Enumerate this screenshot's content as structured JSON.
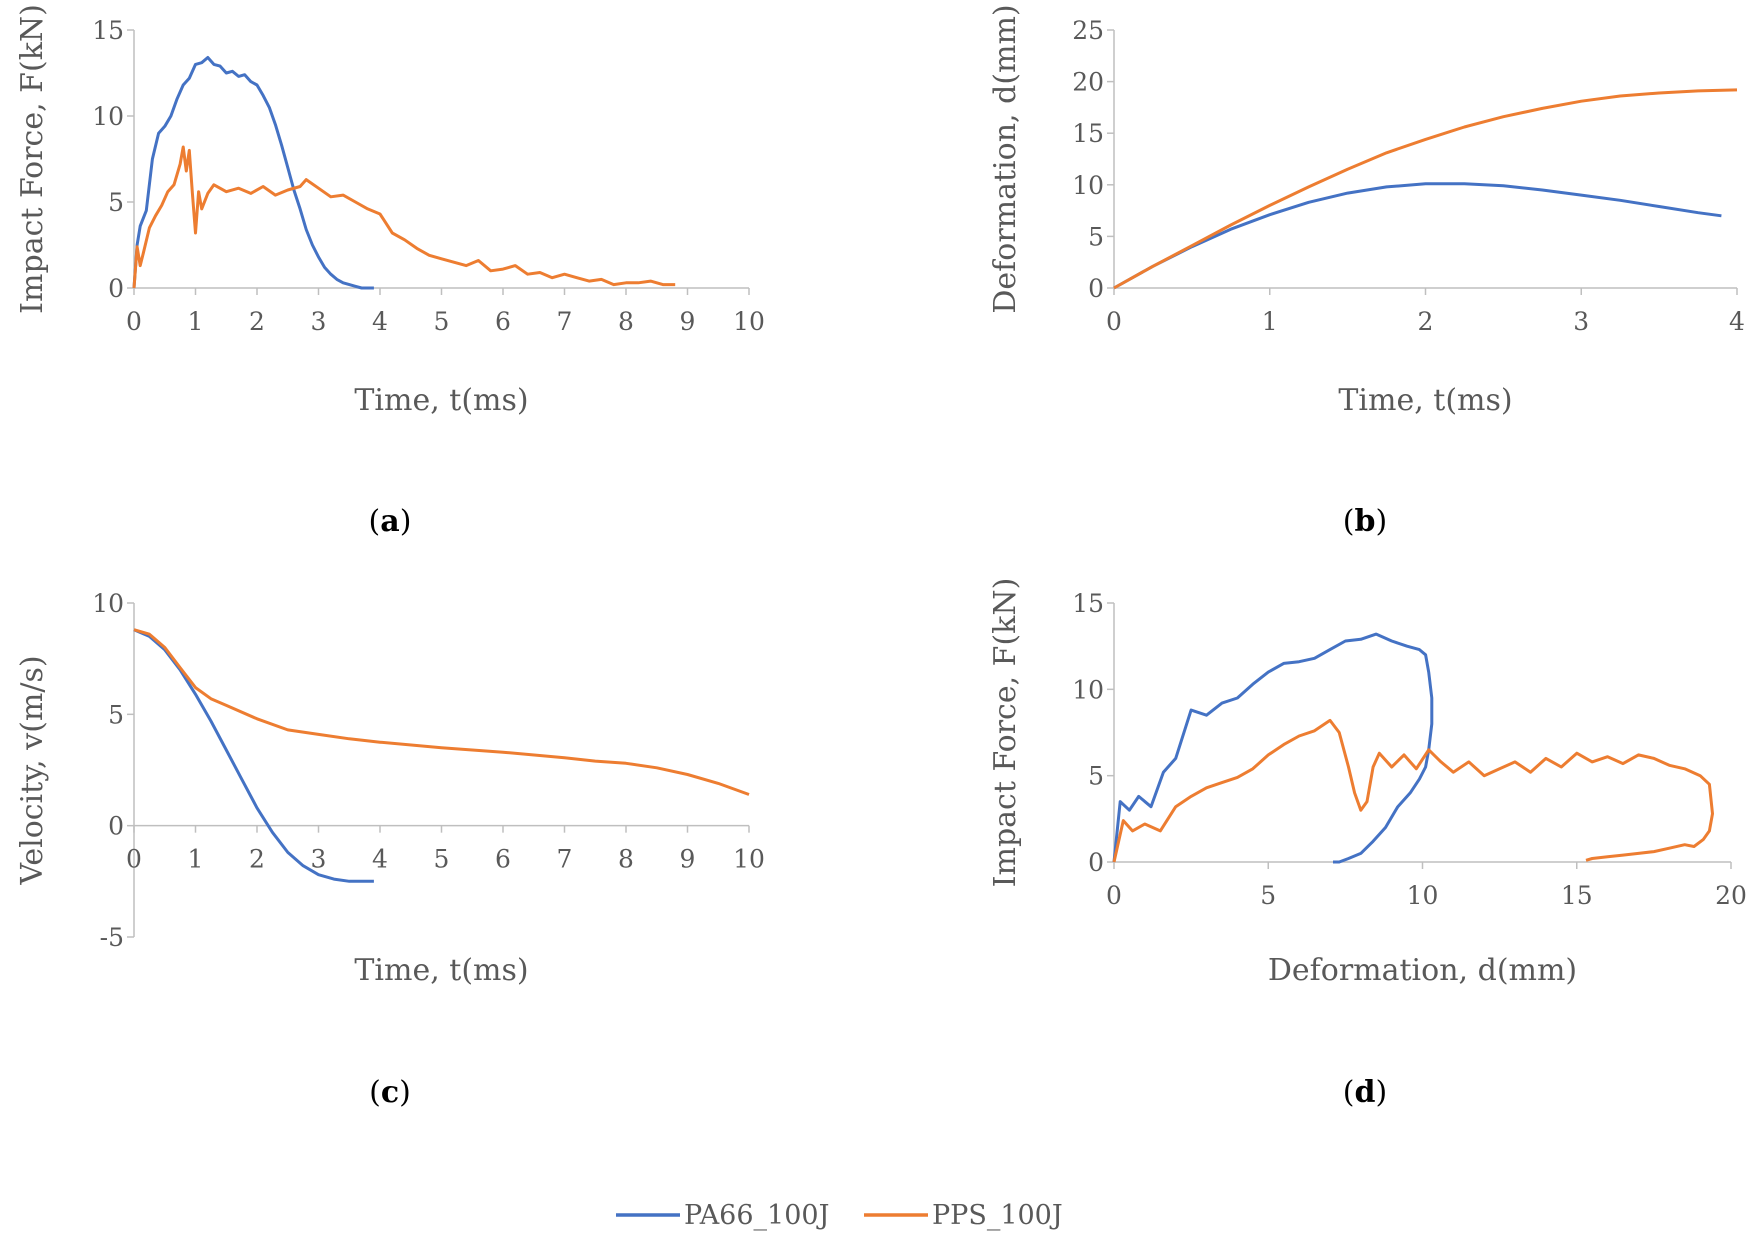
{
  "colors": {
    "PA66_100J": "#4472C4",
    "PPS_100J": "#ED7D31",
    "axis": "#BFBFBF",
    "text": "#595959"
  },
  "legend": {
    "series": [
      "PA66_100J",
      "PPS_100J"
    ]
  },
  "chart_data": [
    {
      "panel": "a",
      "type": "line",
      "xlabel": "Time, t(ms)",
      "ylabel": "Impact Force, F(kN)",
      "xlim": [
        0,
        10
      ],
      "ylim": [
        0,
        15
      ],
      "xticks": [
        0,
        1,
        2,
        3,
        4,
        5,
        6,
        7,
        8,
        9,
        10
      ],
      "yticks": [
        0,
        5,
        10,
        15
      ],
      "series": [
        {
          "name": "PA66_100J",
          "x": [
            0,
            0.05,
            0.1,
            0.2,
            0.3,
            0.4,
            0.5,
            0.6,
            0.7,
            0.8,
            0.9,
            1.0,
            1.1,
            1.2,
            1.3,
            1.4,
            1.5,
            1.6,
            1.7,
            1.8,
            1.9,
            2.0,
            2.1,
            2.2,
            2.3,
            2.4,
            2.5,
            2.6,
            2.7,
            2.8,
            2.9,
            3.0,
            3.1,
            3.2,
            3.3,
            3.4,
            3.5,
            3.6,
            3.7,
            3.8,
            3.9
          ],
          "y": [
            0,
            2.5,
            3.6,
            4.5,
            7.5,
            9.0,
            9.4,
            10.0,
            11.0,
            11.8,
            12.2,
            13.0,
            13.1,
            13.4,
            13.0,
            12.9,
            12.5,
            12.6,
            12.3,
            12.4,
            12.0,
            11.8,
            11.2,
            10.5,
            9.5,
            8.3,
            7.0,
            5.7,
            4.6,
            3.4,
            2.5,
            1.8,
            1.2,
            0.8,
            0.5,
            0.3,
            0.2,
            0.1,
            0.0,
            0.0,
            0.0
          ]
        },
        {
          "name": "PPS_100J",
          "x": [
            0,
            0.05,
            0.1,
            0.15,
            0.25,
            0.35,
            0.45,
            0.55,
            0.65,
            0.75,
            0.8,
            0.85,
            0.9,
            0.95,
            1.0,
            1.05,
            1.1,
            1.2,
            1.3,
            1.5,
            1.7,
            1.9,
            2.1,
            2.3,
            2.5,
            2.7,
            2.8,
            3.0,
            3.2,
            3.4,
            3.6,
            3.8,
            4.0,
            4.2,
            4.4,
            4.6,
            4.8,
            5.0,
            5.2,
            5.4,
            5.6,
            5.8,
            6.0,
            6.2,
            6.4,
            6.6,
            6.8,
            7.0,
            7.2,
            7.4,
            7.6,
            7.8,
            8.0,
            8.2,
            8.4,
            8.6,
            8.8
          ],
          "y": [
            0,
            2.4,
            1.3,
            2.0,
            3.5,
            4.2,
            4.8,
            5.6,
            6.0,
            7.2,
            8.2,
            6.8,
            8.0,
            5.5,
            3.2,
            5.6,
            4.6,
            5.5,
            6.0,
            5.6,
            5.8,
            5.5,
            5.9,
            5.4,
            5.7,
            5.9,
            6.3,
            5.8,
            5.3,
            5.4,
            5.0,
            4.6,
            4.3,
            3.2,
            2.8,
            2.3,
            1.9,
            1.7,
            1.5,
            1.3,
            1.6,
            1.0,
            1.1,
            1.3,
            0.8,
            0.9,
            0.6,
            0.8,
            0.6,
            0.4,
            0.5,
            0.2,
            0.3,
            0.3,
            0.4,
            0.2,
            0.2
          ]
        }
      ]
    },
    {
      "panel": "b",
      "type": "line",
      "xlabel": "Time, t(ms)",
      "ylabel": "Deformation, d(mm)",
      "xlim": [
        0,
        4
      ],
      "ylim": [
        0,
        25
      ],
      "xticks": [
        0,
        1,
        2,
        3,
        4
      ],
      "yticks": [
        0,
        5,
        10,
        15,
        20,
        25
      ],
      "series": [
        {
          "name": "PA66_100J",
          "x": [
            0,
            0.25,
            0.5,
            0.75,
            1.0,
            1.25,
            1.5,
            1.75,
            2.0,
            2.25,
            2.5,
            2.75,
            3.0,
            3.25,
            3.5,
            3.75,
            3.9
          ],
          "y": [
            0,
            2.1,
            4.0,
            5.7,
            7.1,
            8.3,
            9.2,
            9.8,
            10.1,
            10.1,
            9.9,
            9.5,
            9.0,
            8.5,
            7.9,
            7.3,
            7.0
          ]
        },
        {
          "name": "PPS_100J",
          "x": [
            0,
            0.25,
            0.5,
            0.75,
            1.0,
            1.25,
            1.5,
            1.75,
            2.0,
            2.25,
            2.5,
            2.75,
            3.0,
            3.25,
            3.5,
            3.75,
            4.0
          ],
          "y": [
            0,
            2.1,
            4.1,
            6.1,
            8.0,
            9.8,
            11.5,
            13.1,
            14.4,
            15.6,
            16.6,
            17.4,
            18.1,
            18.6,
            18.9,
            19.1,
            19.2
          ]
        }
      ]
    },
    {
      "panel": "c",
      "type": "line",
      "xlabel": "Time, t(ms)",
      "ylabel": "Velocity, v(m/s)",
      "xlim": [
        0,
        10
      ],
      "ylim": [
        -5,
        10
      ],
      "xticks": [
        0,
        1,
        2,
        3,
        4,
        5,
        6,
        7,
        8,
        9,
        10
      ],
      "yticks": [
        -5,
        0,
        5,
        10
      ],
      "series": [
        {
          "name": "PA66_100J",
          "x": [
            0,
            0.25,
            0.5,
            0.75,
            1.0,
            1.25,
            1.5,
            1.75,
            2.0,
            2.25,
            2.5,
            2.75,
            3.0,
            3.25,
            3.5,
            3.75,
            3.9
          ],
          "y": [
            8.8,
            8.5,
            7.9,
            7.0,
            5.9,
            4.7,
            3.4,
            2.1,
            0.8,
            -0.3,
            -1.2,
            -1.8,
            -2.2,
            -2.4,
            -2.5,
            -2.5,
            -2.5
          ]
        },
        {
          "name": "PPS_100J",
          "x": [
            0,
            0.25,
            0.5,
            0.75,
            1.0,
            1.25,
            1.5,
            2.0,
            2.5,
            3.0,
            3.5,
            4.0,
            5.0,
            6.0,
            7.0,
            7.5,
            8.0,
            8.5,
            9.0,
            9.5,
            10.0
          ],
          "y": [
            8.8,
            8.6,
            8.0,
            7.1,
            6.2,
            5.7,
            5.4,
            4.8,
            4.3,
            4.1,
            3.9,
            3.75,
            3.5,
            3.3,
            3.05,
            2.9,
            2.8,
            2.6,
            2.3,
            1.9,
            1.4
          ]
        }
      ]
    },
    {
      "panel": "d",
      "type": "line",
      "xlabel": "Deformation, d(mm)",
      "ylabel": "Impact Force, F(kN)",
      "xlim": [
        0,
        20
      ],
      "ylim": [
        0,
        15
      ],
      "xticks": [
        0,
        5,
        10,
        15,
        20
      ],
      "yticks": [
        0,
        5,
        10,
        15
      ],
      "series": [
        {
          "name": "PA66_100J",
          "x": [
            0,
            0.2,
            0.5,
            0.8,
            1.2,
            1.6,
            2.0,
            2.5,
            3.0,
            3.5,
            4.0,
            4.5,
            5.0,
            5.5,
            6.0,
            6.5,
            7.0,
            7.5,
            8.0,
            8.5,
            9.0,
            9.5,
            9.9,
            10.1,
            10.2,
            10.3,
            10.3,
            10.2,
            10.1,
            9.9,
            9.6,
            9.2,
            8.8,
            8.4,
            8.0,
            7.6,
            7.3,
            7.1
          ],
          "y": [
            0,
            3.5,
            3.0,
            3.8,
            3.2,
            5.2,
            6.0,
            8.8,
            8.5,
            9.2,
            9.5,
            10.3,
            11.0,
            11.5,
            11.6,
            11.8,
            12.3,
            12.8,
            12.9,
            13.2,
            12.8,
            12.5,
            12.3,
            12.0,
            11.0,
            9.5,
            8.0,
            6.5,
            5.5,
            4.8,
            4.0,
            3.2,
            2.0,
            1.2,
            0.5,
            0.2,
            0.0,
            0.0
          ]
        },
        {
          "name": "PPS_100J",
          "x": [
            0,
            0.3,
            0.6,
            1.0,
            1.5,
            2.0,
            2.5,
            3.0,
            3.5,
            4.0,
            4.5,
            5.0,
            5.5,
            6.0,
            6.5,
            7.0,
            7.3,
            7.6,
            7.8,
            8.0,
            8.2,
            8.4,
            8.6,
            9.0,
            9.4,
            9.8,
            10.2,
            10.6,
            11.0,
            11.5,
            12.0,
            12.5,
            13.0,
            13.5,
            14.0,
            14.5,
            15.0,
            15.5,
            16.0,
            16.5,
            17.0,
            17.5,
            18.0,
            18.5,
            19.0,
            19.3,
            19.4,
            19.3,
            19.1,
            18.8,
            18.5,
            18.0,
            17.5,
            17.0,
            16.5,
            16.0,
            15.5,
            15.3
          ],
          "y": [
            0,
            2.4,
            1.8,
            2.2,
            1.8,
            3.2,
            3.8,
            4.3,
            4.6,
            4.9,
            5.4,
            6.2,
            6.8,
            7.3,
            7.6,
            8.2,
            7.5,
            5.5,
            4.0,
            3.0,
            3.5,
            5.5,
            6.3,
            5.5,
            6.2,
            5.4,
            6.5,
            5.8,
            5.2,
            5.8,
            5.0,
            5.4,
            5.8,
            5.2,
            6.0,
            5.5,
            6.3,
            5.8,
            6.1,
            5.7,
            6.2,
            6.0,
            5.6,
            5.4,
            5.0,
            4.5,
            2.8,
            1.8,
            1.3,
            0.9,
            1.0,
            0.8,
            0.6,
            0.5,
            0.4,
            0.3,
            0.2,
            0.1
          ]
        }
      ]
    }
  ]
}
